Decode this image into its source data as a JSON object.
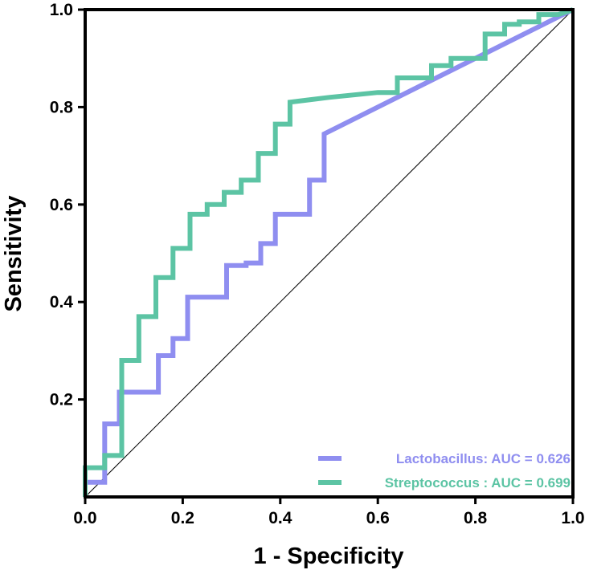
{
  "chart_data": {
    "type": "line",
    "title": "",
    "xlabel": "1 - Specificity",
    "ylabel": "Sensitivity",
    "xlim": [
      0,
      1
    ],
    "ylim": [
      0,
      1
    ],
    "x_ticks": [
      "0.0",
      "0.2",
      "0.4",
      "0.6",
      "0.8",
      "1.0"
    ],
    "y_ticks": [
      "0.2",
      "0.4",
      "0.6",
      "0.8",
      "1.0"
    ],
    "grid": false,
    "legend_position": "bottom-right",
    "reference_line": {
      "name": "chance",
      "x": [
        0,
        1
      ],
      "y": [
        0,
        1
      ],
      "color": "#000000"
    },
    "series": [
      {
        "name": "Lactobacillus",
        "label": "Lactobacillus: AUC = 0.626",
        "auc": 0.626,
        "color": "#8f8ef0",
        "x": [
          0,
          0,
          0.04,
          0.04,
          0.07,
          0.07,
          0.15,
          0.15,
          0.18,
          0.18,
          0.21,
          0.21,
          0.25,
          0.25,
          0.29,
          0.29,
          0.33,
          0.33,
          0.36,
          0.36,
          0.39,
          0.39,
          0.46,
          0.46,
          0.49,
          0.49,
          1
        ],
        "y": [
          0,
          0.03,
          0.03,
          0.15,
          0.15,
          0.215,
          0.215,
          0.29,
          0.29,
          0.325,
          0.325,
          0.41,
          0.41,
          0.41,
          0.41,
          0.475,
          0.475,
          0.48,
          0.48,
          0.52,
          0.52,
          0.58,
          0.58,
          0.65,
          0.65,
          0.745,
          1
        ]
      },
      {
        "name": "Streptococcus",
        "label": "Streptococcus : AUC = 0.699",
        "auc": 0.699,
        "color": "#5cc4a4",
        "x": [
          0,
          0,
          0.04,
          0.04,
          0.075,
          0.075,
          0.11,
          0.11,
          0.145,
          0.145,
          0.18,
          0.18,
          0.215,
          0.215,
          0.25,
          0.25,
          0.285,
          0.285,
          0.32,
          0.32,
          0.355,
          0.355,
          0.39,
          0.39,
          0.42,
          0.42,
          0.5,
          0.6,
          0.64,
          0.64,
          0.71,
          0.71,
          0.75,
          0.75,
          0.82,
          0.82,
          0.86,
          0.86,
          0.89,
          0.89,
          0.93,
          0.93,
          0.97,
          1
        ],
        "y": [
          0,
          0.06,
          0.06,
          0.085,
          0.085,
          0.28,
          0.28,
          0.37,
          0.37,
          0.45,
          0.45,
          0.51,
          0.51,
          0.58,
          0.58,
          0.6,
          0.6,
          0.625,
          0.625,
          0.65,
          0.65,
          0.705,
          0.705,
          0.765,
          0.765,
          0.81,
          0.82,
          0.83,
          0.83,
          0.86,
          0.86,
          0.885,
          0.885,
          0.9,
          0.9,
          0.95,
          0.95,
          0.97,
          0.97,
          0.975,
          0.975,
          0.99,
          0.99,
          1
        ]
      }
    ]
  }
}
